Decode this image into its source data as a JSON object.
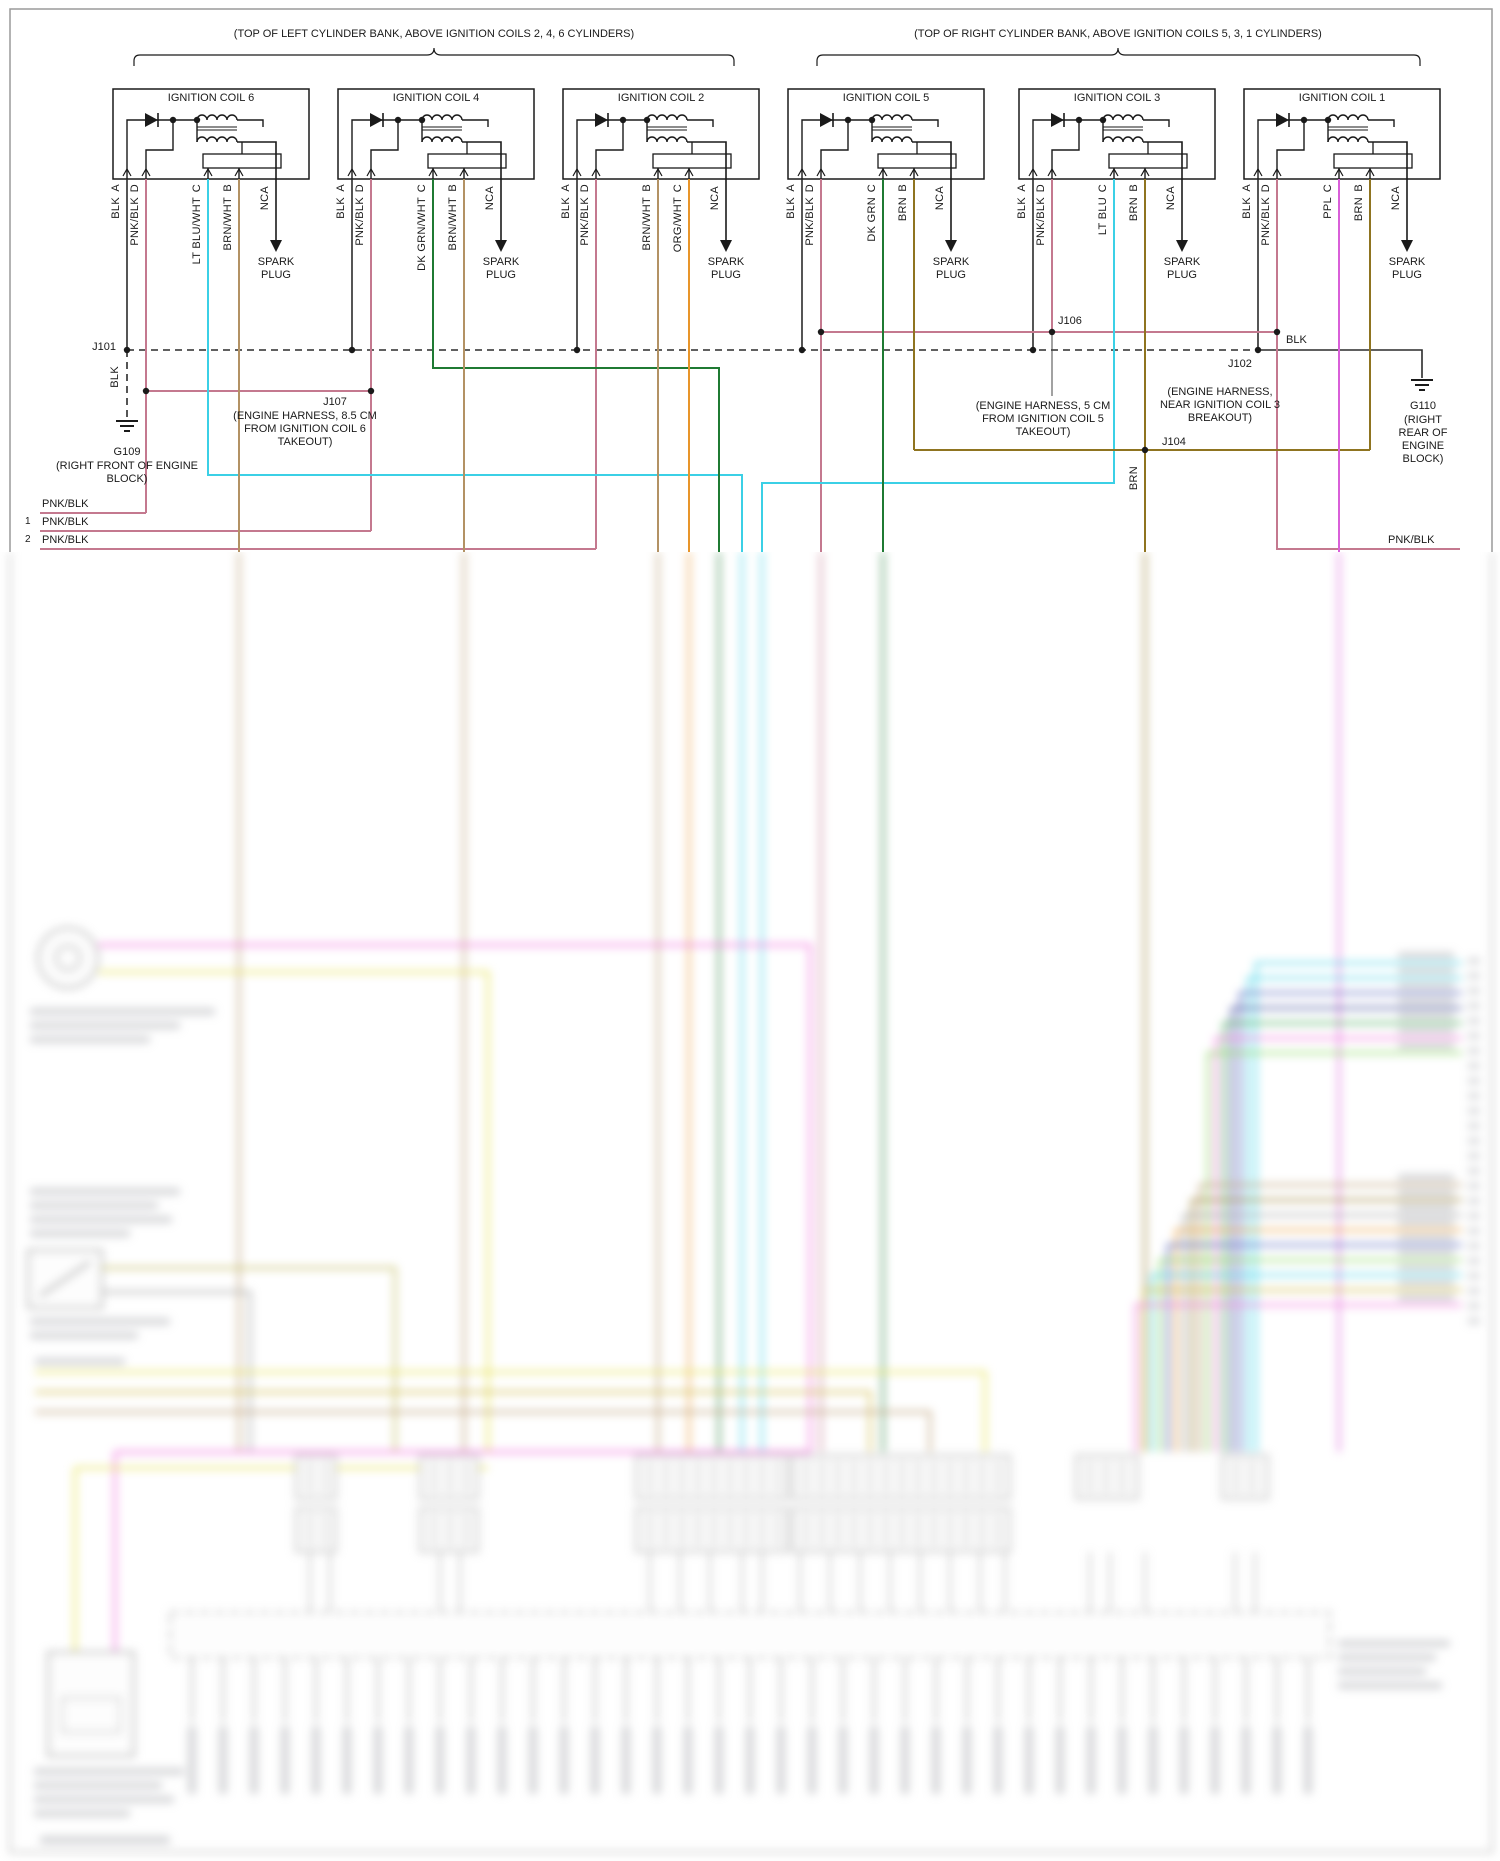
{
  "page_title": "Ignition coil wiring schematic",
  "banks": {
    "left_label": "(TOP OF LEFT CYLINDER BANK, ABOVE IGNITION COILS 2, 4, 6 CYLINDERS)",
    "right_label": "(TOP OF RIGHT CYLINDER BANK, ABOVE IGNITION COILS 5, 3, 1 CYLINDERS)"
  },
  "coils": [
    {
      "title": "IGNITION COIL 6",
      "spark_label": "SPARK PLUG",
      "pins": [
        {
          "wire": "BLK",
          "pin": "A"
        },
        {
          "wire": "PNK/BLK",
          "pin": "D"
        },
        {
          "wire": "LT BLU/WHT",
          "pin": "C"
        },
        {
          "wire": "BRN/WHT",
          "pin": "B"
        },
        {
          "wire": "NCA",
          "pin": ""
        }
      ]
    },
    {
      "title": "IGNITION COIL 4",
      "spark_label": "SPARK PLUG",
      "pins": [
        {
          "wire": "BLK",
          "pin": "A"
        },
        {
          "wire": "PNK/BLK",
          "pin": "D"
        },
        {
          "wire": "DK GRN/WHT",
          "pin": "C"
        },
        {
          "wire": "BRN/WHT",
          "pin": "B"
        },
        {
          "wire": "NCA",
          "pin": ""
        }
      ]
    },
    {
      "title": "IGNITION COIL 2",
      "spark_label": "SPARK PLUG",
      "pins": [
        {
          "wire": "BLK",
          "pin": "A"
        },
        {
          "wire": "PNK/BLK",
          "pin": "D"
        },
        {
          "wire": "BRN/WHT",
          "pin": "B"
        },
        {
          "wire": "ORG/WHT",
          "pin": "C"
        },
        {
          "wire": "NCA",
          "pin": ""
        }
      ]
    },
    {
      "title": "IGNITION COIL 5",
      "spark_label": "SPARK PLUG",
      "pins": [
        {
          "wire": "BLK",
          "pin": "A"
        },
        {
          "wire": "PNK/BLK",
          "pin": "D"
        },
        {
          "wire": "DK GRN",
          "pin": "C"
        },
        {
          "wire": "BRN",
          "pin": "B"
        },
        {
          "wire": "NCA",
          "pin": ""
        }
      ]
    },
    {
      "title": "IGNITION COIL 3",
      "spark_label": "SPARK PLUG",
      "pins": [
        {
          "wire": "BLK",
          "pin": "A"
        },
        {
          "wire": "PNK/BLK",
          "pin": "D"
        },
        {
          "wire": "LT BLU",
          "pin": "C"
        },
        {
          "wire": "BRN",
          "pin": "B"
        },
        {
          "wire": "NCA",
          "pin": ""
        }
      ]
    },
    {
      "title": "IGNITION COIL 1",
      "spark_label": "SPARK PLUG",
      "pins": [
        {
          "wire": "BLK",
          "pin": "A"
        },
        {
          "wire": "PNK/BLK",
          "pin": "D"
        },
        {
          "wire": "PPL",
          "pin": "C"
        },
        {
          "wire": "BRN",
          "pin": "B"
        },
        {
          "wire": "NCA",
          "pin": ""
        }
      ]
    }
  ],
  "junctions": {
    "j101": "J101",
    "j102": "J102",
    "j104": "J104",
    "j106": "J106",
    "j107": "J107",
    "g109": "G109",
    "g109_note": "(RIGHT FRONT OF ENGINE BLOCK)",
    "g110": "G110",
    "g110_note": "(RIGHT REAR OF ENGINE BLOCK)",
    "j107_note": "(ENGINE HARNESS, 8.5 CM FROM IGNITION COIL 6 TAKEOUT)",
    "j106_note": "(ENGINE HARNESS, 5 CM FROM IGNITION COIL 5 TAKEOUT)",
    "j104_note": "(ENGINE HARNESS, NEAR IGNITION COIL 3 BREAKOUT)",
    "blk_left": "BLK",
    "blk_right": "BLK",
    "brn_takeout": "BRN"
  },
  "edge_circuits": {
    "left": [
      {
        "num": "1",
        "label": "PNK/BLK"
      },
      {
        "num": "2",
        "label": "PNK/BLK"
      },
      {
        "num": "",
        "label": "PNK/BLK"
      }
    ],
    "right_label": "PNK/BLK"
  },
  "wire_colors": {
    "BLK": "#2b2b2b",
    "PNK/BLK": "#c4798f",
    "LT BLU/WHT": "#3bd0e6",
    "BRN/WHT": "#b39264",
    "DK GRN/WHT": "#1f7a33",
    "ORG/WHT": "#e8952a",
    "DK GRN": "#1f7a33",
    "LT BLU": "#3bd0e6",
    "PPL": "#d95fd9",
    "BRN": "#8f7420",
    "NCA": "#2b2b2b"
  }
}
